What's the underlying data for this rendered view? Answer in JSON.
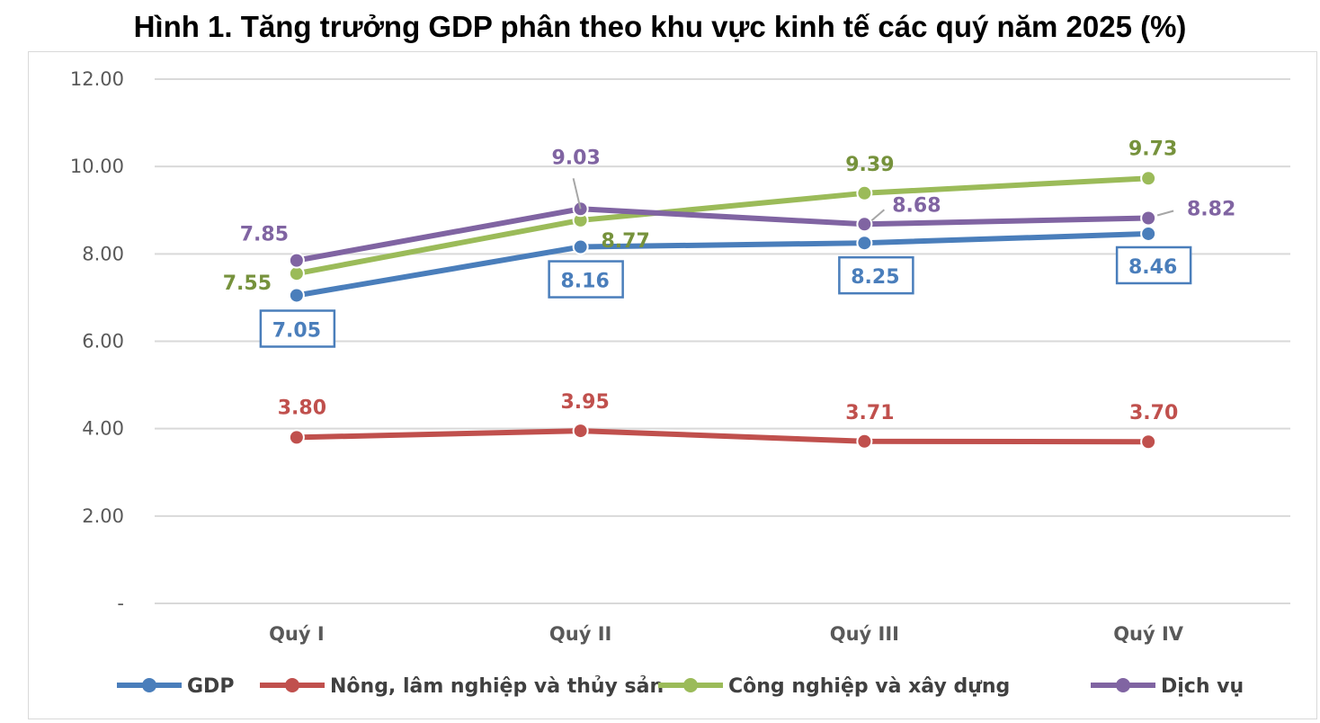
{
  "title": "Hình 1. Tăng trưởng GDP phân theo khu vực kinh tế các quý năm 2025 (%)",
  "chart_data": {
    "type": "line",
    "title": "Hình 1. Tăng trưởng GDP phân theo khu vực kinh tế các quý năm 2025 (%)",
    "categories": [
      "Quý I",
      "Quý II",
      "Quý III",
      "Quý IV"
    ],
    "ylim": [
      0,
      12
    ],
    "yticks": [
      0,
      2,
      4,
      6,
      8,
      10,
      12
    ],
    "ytick_labels": [
      "-",
      "2.00",
      "4.00",
      "6.00",
      "8.00",
      "10.00",
      "12.00"
    ],
    "grid": true,
    "legend": "bottom",
    "series": [
      {
        "name": "GDP",
        "color": "#4a7ebb",
        "values": [
          7.05,
          8.16,
          8.25,
          8.46
        ],
        "labels": [
          "7.05",
          "8.16",
          "8.25",
          "8.46"
        ]
      },
      {
        "name": "Nông, lâm nghiệp và thủy sản",
        "color": "#c0504d",
        "values": [
          3.8,
          3.95,
          3.71,
          3.7
        ],
        "labels": [
          "3.80",
          "3.95",
          "3.71",
          "3.70"
        ]
      },
      {
        "name": "Công nghiệp và xây dựng",
        "color": "#9bbb59",
        "values": [
          7.55,
          8.77,
          9.39,
          9.73
        ],
        "labels": [
          "7.55",
          "8.77",
          "9.39",
          "9.73"
        ]
      },
      {
        "name": "Dịch vụ",
        "color": "#8064a2",
        "values": [
          7.85,
          9.03,
          8.68,
          8.82
        ],
        "labels": [
          "7.85",
          "9.03",
          "8.68",
          "8.82"
        ]
      }
    ],
    "label_colors": [
      "#4a7ebb",
      "#c0504d",
      "#76923c",
      "#8064a2"
    ]
  }
}
